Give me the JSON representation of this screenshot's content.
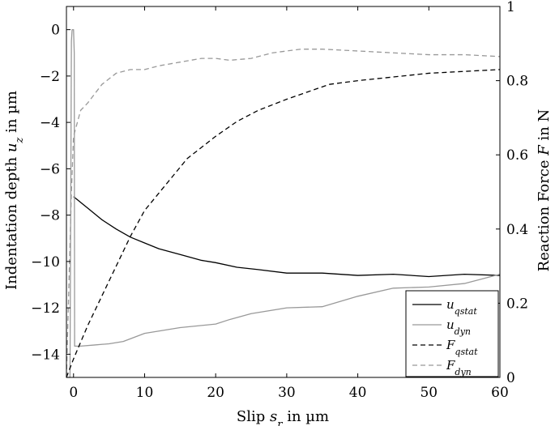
{
  "chart_data": {
    "type": "line",
    "xlabel": "Slip s_r in µm",
    "ylabel_left": "Indentation depth u_z in µm",
    "ylabel_right": "Reaction Force F in N",
    "xlim": [
      -1,
      60
    ],
    "ylim_left": [
      -15,
      1
    ],
    "ylim_right": [
      0,
      1
    ],
    "x_ticks": [
      0,
      10,
      20,
      30,
      40,
      50,
      60
    ],
    "y_left_ticks": [
      0,
      -2,
      -4,
      -6,
      -8,
      -10,
      -12,
      -14
    ],
    "y_right_ticks": [
      0,
      0.2,
      0.4,
      0.6,
      0.8,
      1
    ],
    "x_tick_labels": [
      "0",
      "10",
      "20",
      "30",
      "40",
      "50",
      "60"
    ],
    "y_left_tick_labels": [
      "0",
      "−2",
      "−4",
      "−6",
      "−8",
      "−10",
      "−12",
      "−14"
    ],
    "y_right_tick_labels": [
      "0",
      "0.2",
      "0.4",
      "0.6",
      "0.8",
      "1"
    ],
    "grid": false,
    "legend_position": "bottom-right",
    "series": [
      {
        "name": "u_qstat",
        "legend_main": "u",
        "legend_sub": "qstat",
        "axis": "left",
        "color": "#000000",
        "dash": "solid",
        "x": [
          0,
          2,
          4,
          6,
          8,
          10,
          12,
          15,
          18,
          20,
          23,
          26,
          30,
          35,
          40,
          45,
          50,
          55,
          60
        ],
        "y": [
          -7.2,
          -7.7,
          -8.2,
          -8.6,
          -8.95,
          -9.2,
          -9.45,
          -9.7,
          -9.95,
          -10.05,
          -10.25,
          -10.35,
          -10.5,
          -10.5,
          -10.6,
          -10.55,
          -10.65,
          -10.55,
          -10.6
        ]
      },
      {
        "name": "u_dyn",
        "legend_main": "u",
        "legend_sub": "dyn",
        "axis": "left",
        "color": "#999999",
        "dash": "solid",
        "x": [
          -1,
          -0.5,
          -0.3,
          -0.2,
          0,
          0.1,
          0.15,
          1,
          3,
          5,
          7,
          10,
          15,
          20,
          22,
          25,
          30,
          35,
          40,
          45,
          50,
          55,
          60
        ],
        "y": [
          -15,
          -15,
          -0.5,
          0,
          0,
          -1,
          -13.65,
          -13.65,
          -13.6,
          -13.55,
          -13.45,
          -13.1,
          -12.85,
          -12.7,
          -12.5,
          -12.25,
          -12.0,
          -11.95,
          -11.5,
          -11.15,
          -11.1,
          -10.95,
          -10.55
        ]
      },
      {
        "name": "F_qstat",
        "legend_main": "F",
        "legend_sub": "qstat",
        "axis": "right",
        "color": "#000000",
        "dash": "dashed",
        "x": [
          -1,
          0,
          2,
          4,
          6,
          8,
          10,
          13,
          16,
          20,
          23,
          26,
          30,
          33,
          36,
          40,
          45,
          50,
          55,
          60
        ],
        "y": [
          0.0,
          0.05,
          0.14,
          0.22,
          0.3,
          0.38,
          0.45,
          0.52,
          0.59,
          0.65,
          0.69,
          0.72,
          0.75,
          0.77,
          0.79,
          0.8,
          0.81,
          0.82,
          0.825,
          0.83
        ]
      },
      {
        "name": "F_dyn",
        "legend_main": "F",
        "legend_sub": "dyn",
        "axis": "right",
        "color": "#999999",
        "dash": "dashed",
        "x": [
          -1,
          -0.3,
          0,
          1,
          2,
          4,
          6,
          8,
          10,
          12,
          15,
          18,
          20,
          22,
          25,
          28,
          30,
          32,
          35,
          40,
          45,
          50,
          55,
          60
        ],
        "y": [
          0.0,
          0.5,
          0.65,
          0.72,
          0.74,
          0.79,
          0.82,
          0.83,
          0.83,
          0.84,
          0.85,
          0.86,
          0.86,
          0.855,
          0.86,
          0.875,
          0.88,
          0.885,
          0.885,
          0.88,
          0.875,
          0.87,
          0.87,
          0.865
        ]
      }
    ]
  }
}
